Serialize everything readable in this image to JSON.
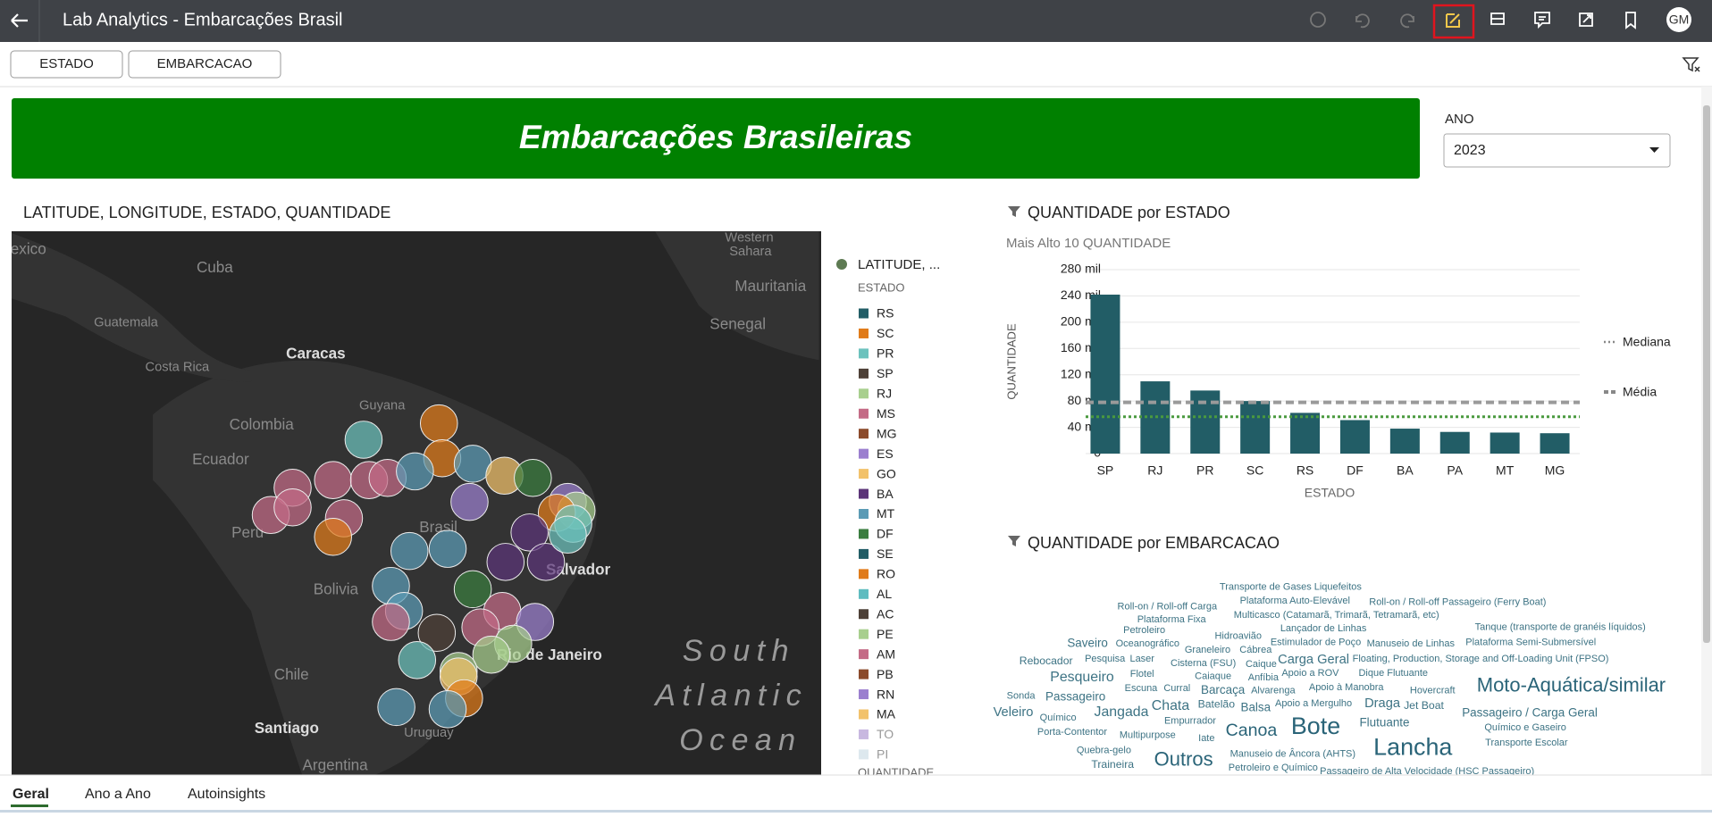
{
  "header": {
    "title": "Lab Analytics - Embarcações Brasil",
    "avatar": "GM"
  },
  "filters": [
    "ESTADO",
    "EMBARCACAO"
  ],
  "banner": {
    "title": "Embarcações Brasileiras"
  },
  "year_selector": {
    "label": "ANO",
    "value": "2023"
  },
  "map": {
    "title": "LATITUDE, LONGITUDE, ESTADO, QUANTIDADE",
    "labels": [
      "Mexico",
      "Cuba",
      "Western",
      "Sahara",
      "Mauritania",
      "Guatemala",
      "Senegal",
      "Caracas",
      "Costa Rica",
      "Colombia",
      "Guyana",
      "Ecuador",
      "Peru",
      "Brasil",
      "Bolivia",
      "Salvador",
      "Rio de Janeiro",
      "Chile",
      "Santiago",
      "Uruguay",
      "Argentina",
      "South",
      "Atlantic",
      "Ocean"
    ],
    "legend": {
      "layer": "LATITUDE, ...",
      "layer_color": "#5d7a52",
      "heading": "ESTADO",
      "size_heading": "QUANTIDADE",
      "items": [
        {
          "name": "RS",
          "color": "#225d66"
        },
        {
          "name": "SC",
          "color": "#e07b1a"
        },
        {
          "name": "PR",
          "color": "#6cc2bd"
        },
        {
          "name": "SP",
          "color": "#4d4037"
        },
        {
          "name": "RJ",
          "color": "#a8cf8e"
        },
        {
          "name": "MS",
          "color": "#c46b86"
        },
        {
          "name": "MG",
          "color": "#8b4a2b"
        },
        {
          "name": "ES",
          "color": "#9b7fcf"
        },
        {
          "name": "GO",
          "color": "#f2c26b"
        },
        {
          "name": "BA",
          "color": "#5b3478"
        },
        {
          "name": "MT",
          "color": "#5b9bb5"
        },
        {
          "name": "DF",
          "color": "#3a7d3f"
        },
        {
          "name": "SE",
          "color": "#225d66"
        },
        {
          "name": "RO",
          "color": "#e07b1a"
        },
        {
          "name": "AL",
          "color": "#5fbcc0"
        },
        {
          "name": "AC",
          "color": "#4d4037"
        },
        {
          "name": "PE",
          "color": "#a8cf8e"
        },
        {
          "name": "AM",
          "color": "#c46b86"
        },
        {
          "name": "PB",
          "color": "#8b4a2b"
        },
        {
          "name": "RN",
          "color": "#9b7fcf"
        },
        {
          "name": "MA",
          "color": "#f2c26b"
        },
        {
          "name": "TO",
          "color": "#c8b8e0"
        },
        {
          "name": "PI",
          "color": "#dde8ee"
        }
      ]
    }
  },
  "chart_data": {
    "type": "bar",
    "title": "QUANTIDADE por ESTADO",
    "subtitle": "Mais Alto 10 QUANTIDADE",
    "x_label": "ESTADO",
    "y_label": "QUANTIDADE",
    "categories": [
      "SP",
      "RJ",
      "PR",
      "SC",
      "RS",
      "DF",
      "BA",
      "PA",
      "MT",
      "MG"
    ],
    "values": [
      242000,
      110000,
      96000,
      80000,
      62000,
      51000,
      38000,
      33000,
      32000,
      31000
    ],
    "color": "#225d66",
    "ylim": [
      0,
      280000
    ],
    "yticks": [
      0,
      {
        "value": 40000,
        "label": "40 mil"
      },
      {
        "value": 80000,
        "label": "80 mil"
      },
      {
        "value": 120000,
        "label": "120 mil"
      },
      {
        "value": 160000,
        "label": "160 mil"
      },
      {
        "value": 200000,
        "label": "200 mil"
      },
      {
        "value": 240000,
        "label": "240 mil"
      },
      {
        "value": 280000,
        "label": "280 mil"
      }
    ],
    "grid": true,
    "reference_lines": [
      {
        "name": "Mediana",
        "value": 56000,
        "color": "#4a9a3f",
        "legend_color": "#888888",
        "style": "dotted"
      },
      {
        "name": "Média",
        "value": 78000,
        "color": "#9a9a9a",
        "legend_color": "#888888",
        "style": "dashed"
      }
    ]
  },
  "word_cloud": {
    "title": "QUANTIDADE por EMBARCACAO",
    "words": [
      "Transporte de Gases Liquefeitos",
      "Roll-on / Roll-off Carga",
      "Plataforma Auto-Elevável",
      "Roll-on / Roll-off Passageiro (Ferry Boat)",
      "Plataforma Fixa",
      "Multicasco (Catamarã, Trimarã, Tetramarã, etc)",
      "Petroleiro",
      "Lançador de Linhas",
      "Tanque (transporte de granéis líquidos)",
      "Hidroavião",
      "Saveiro",
      "Oceanográfico",
      "Estimulador de Poço",
      "Manuseio de Linhas",
      "Plataforma Semi-Submersível",
      "Graneleiro",
      "Cábrea",
      "Rebocador",
      "Pesquisa",
      "Laser",
      "Cisterna (FSU)",
      "Caique",
      "Carga Geral",
      "Floating, Production, Storage and Off-Loading Unit (FPSO)",
      "Pesqueiro",
      "Flotel",
      "Caiaque",
      "Anfíbia",
      "Apoio a ROV",
      "Dique Flutuante",
      "Escuna",
      "Curral",
      "Barcaça",
      "Alvarenga",
      "Apoio à Manobra",
      "Hovercraft",
      "Moto-Aquática/similar",
      "Sonda",
      "Passageiro",
      "Chata",
      "Batelão",
      "Apoio a Mergulho",
      "Draga",
      "Jet Boat",
      "Veleiro",
      "Jangada",
      "Balsa",
      "Passageiro / Carga Geral",
      "Químico",
      "Empurrador",
      "Flutuante",
      "Canoa",
      "Bote",
      "Químico e Gaseiro",
      "Porta-Contentor",
      "Multipurpose",
      "Iate",
      "Transporte Escolar",
      "Lancha",
      "Quebra-gelo",
      "Outros",
      "Manuseio de Âncora (AHTS)",
      "Traineira",
      "Petroleiro e Químico",
      "Passageiro de Alta Velocidade (HSC Passageiro)"
    ]
  },
  "tabs": [
    "Geral",
    "Ano a Ano",
    "Autoinsights"
  ]
}
